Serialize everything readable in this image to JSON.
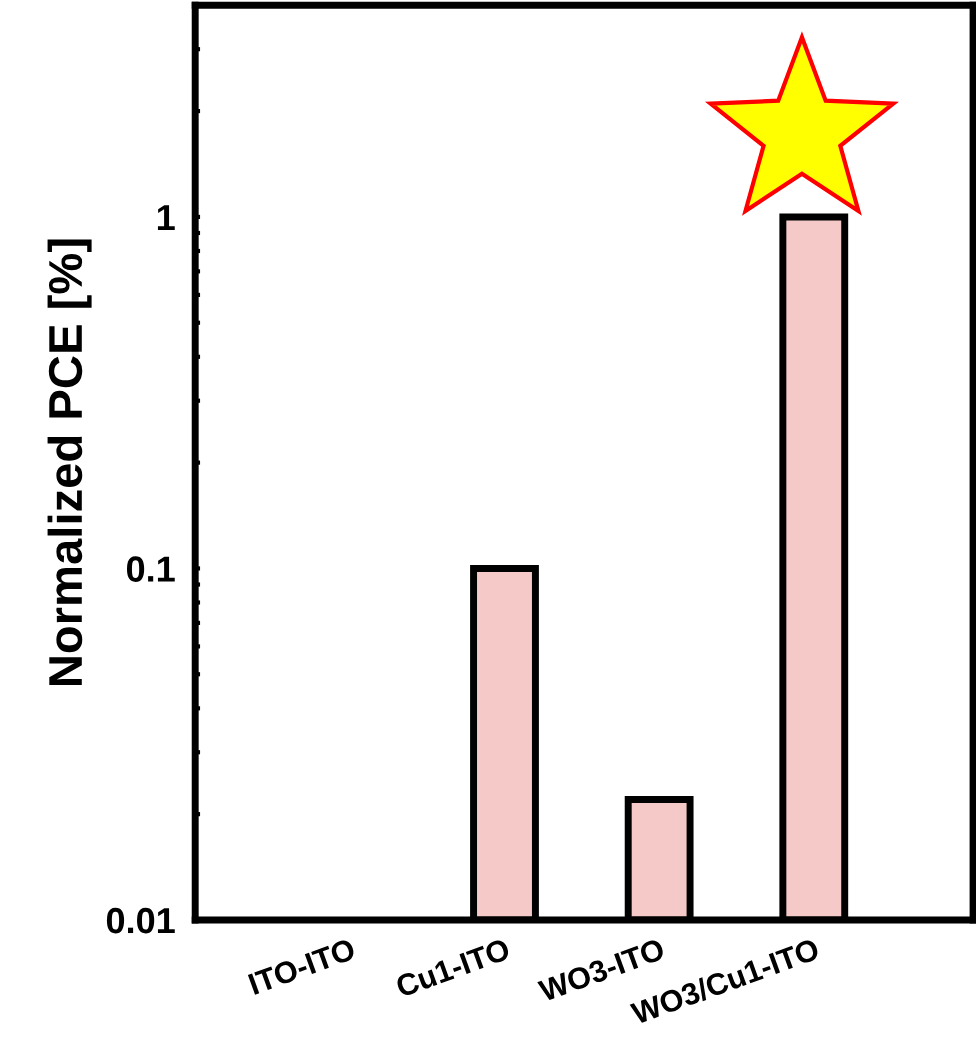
{
  "chart_data": {
    "type": "bar",
    "ylabel": "Normalized PCE [%]",
    "categories": [
      "ITO-ITO",
      "Cu1-ITO",
      "WO3-ITO",
      "WO3/Cu1-ITO"
    ],
    "values": [
      null,
      0.1,
      0.022,
      1
    ],
    "color": "#f6c9c9",
    "log": true,
    "ylim": [
      0.01,
      4
    ],
    "yticks": [
      0.01,
      {
        "value": 0.02,
        "label": null
      },
      {
        "value": 0.03,
        "label": null
      },
      {
        "value": 0.04,
        "label": null
      },
      {
        "value": 0.05,
        "label": null
      },
      {
        "value": 0.06,
        "label": null
      },
      {
        "value": 0.07,
        "label": null
      },
      {
        "value": 0.08,
        "label": null
      },
      {
        "value": 0.09,
        "label": null
      },
      0.1,
      {
        "value": 0.2,
        "label": null
      },
      {
        "value": 0.3,
        "label": null
      },
      {
        "value": 0.4,
        "label": null
      },
      {
        "value": 0.5,
        "label": null
      },
      {
        "value": 0.6,
        "label": null
      },
      {
        "value": 0.7,
        "label": null
      },
      {
        "value": 0.8,
        "label": null
      },
      {
        "value": 0.9,
        "label": null
      },
      1,
      {
        "value": 2,
        "label": null
      },
      {
        "value": 3,
        "label": null
      }
    ],
    "grid": false
  }
}
